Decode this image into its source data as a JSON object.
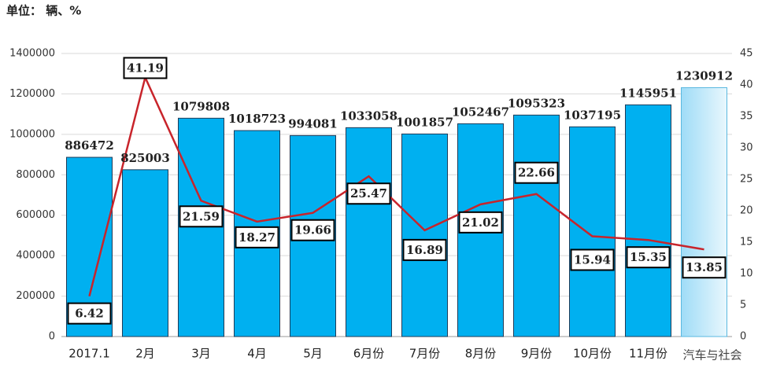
{
  "chart_data": {
    "type": "bar-line",
    "title": "单位： 辆、%",
    "categories": [
      "2017.1",
      "2月",
      "3月",
      "4月",
      "5月",
      "6月份",
      "7月份",
      "8月份",
      "9月份",
      "10月份",
      "11月份",
      null
    ],
    "series": [
      {
        "type": "bar",
        "color": "#00b0f0",
        "values": [
          886472,
          825003,
          1079808,
          1018723,
          994081,
          1033058,
          1001857,
          1052467,
          1095323,
          1037195,
          1145951,
          1230912
        ]
      },
      {
        "type": "line",
        "axis": "y2",
        "color": "#c8242b",
        "values": [
          6.42,
          41.19,
          21.59,
          18.27,
          19.66,
          25.47,
          16.89,
          21.02,
          22.66,
          15.94,
          15.35,
          13.85
        ]
      }
    ],
    "ylim": [
      0,
      1400000
    ],
    "yticks": [
      0,
      200000,
      400000,
      600000,
      800000,
      1000000,
      1200000,
      1400000
    ],
    "y2lim": [
      0,
      45
    ],
    "y2ticks": [
      0,
      5,
      10,
      15,
      20,
      25,
      30,
      35,
      40,
      45
    ],
    "grid": true,
    "watermark": "汽车与社会"
  }
}
